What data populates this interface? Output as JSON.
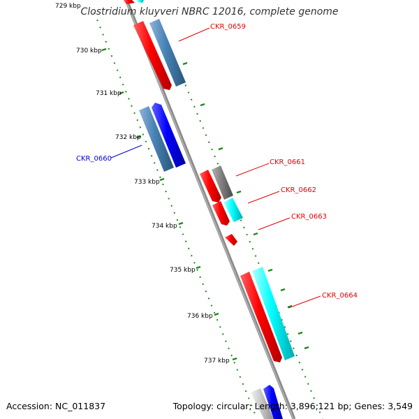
{
  "title": "Clostridium kluyveri NBRC 12016, complete genome",
  "footer": {
    "accession": "Accession: NC_011837",
    "summary": "Topology: circular; Length: 3,896,121 bp; Genes: 3,549"
  },
  "colors": {
    "backbone": "#8a8a8a",
    "tick": "#1a8a1a",
    "label_red": "#e00000",
    "label_blue": "#0000cc",
    "gene_red": "#ff0000",
    "gene_blue": "#0000ff",
    "gene_steel": "#4682b4",
    "gene_cyan": "#00ffff",
    "gene_gray": "#808080",
    "gene_lightgray": "#c8c8c8"
  },
  "kbp_labels": [
    "729 kbp",
    "730 kbp",
    "731 kbp",
    "732 kbp",
    "733 kbp",
    "734 kbp",
    "735 kbp",
    "736 kbp",
    "737 kbp"
  ],
  "gene_labels": [
    {
      "text": "CKR_0659",
      "color": "red"
    },
    {
      "text": "CKR_0660",
      "color": "blue"
    },
    {
      "text": "CKR_0661",
      "color": "red"
    },
    {
      "text": "CKR_0662",
      "color": "red"
    },
    {
      "text": "CKR_0663",
      "color": "red"
    },
    {
      "text": "CKR_0664",
      "color": "red"
    }
  ]
}
